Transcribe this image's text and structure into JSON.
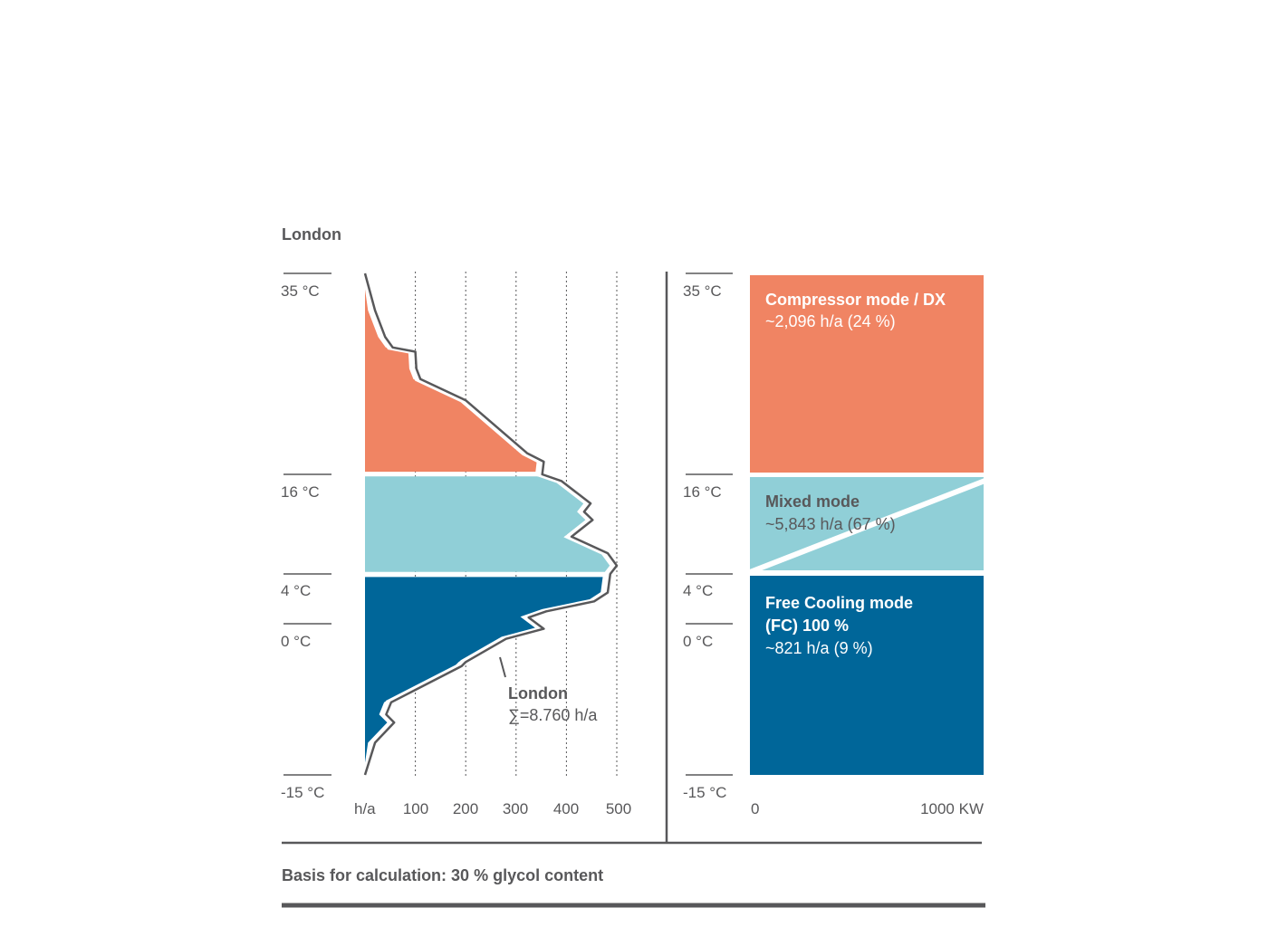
{
  "chart_data": [
    {
      "type": "area",
      "title": "London",
      "y_axis": {
        "label": "",
        "ticks": [
          "35 °C",
          "16 °C",
          "4 °C",
          "0 °C",
          "-15 °C"
        ],
        "range": [
          -15,
          35
        ]
      },
      "x_axis": {
        "unit_label": "h/a",
        "ticks": [
          100,
          200,
          300,
          400,
          500
        ],
        "range": [
          0,
          500
        ]
      },
      "grid": "vertical dotted",
      "series": [
        {
          "name": "London",
          "note": "∑=8.760 h/a",
          "points": [
            {
              "temp": 35.0,
              "hours": 0
            },
            {
              "temp": 31.5,
              "hours": 20
            },
            {
              "temp": 29.0,
              "hours": 40
            },
            {
              "temp": 28.0,
              "hours": 55
            },
            {
              "temp": 27.6,
              "hours": 100
            },
            {
              "temp": 26.0,
              "hours": 102
            },
            {
              "temp": 25.0,
              "hours": 110
            },
            {
              "temp": 23.0,
              "hours": 200
            },
            {
              "temp": 18.0,
              "hours": 322
            },
            {
              "temp": 17.2,
              "hours": 355
            },
            {
              "temp": 16.0,
              "hours": 352
            },
            {
              "temp": 15.2,
              "hours": 390
            },
            {
              "temp": 12.5,
              "hours": 448
            },
            {
              "temp": 11.5,
              "hours": 435
            },
            {
              "temp": 10.5,
              "hours": 452
            },
            {
              "temp": 8.5,
              "hours": 410
            },
            {
              "temp": 6.5,
              "hours": 482
            },
            {
              "temp": 5.0,
              "hours": 500
            },
            {
              "temp": 4.0,
              "hours": 487
            },
            {
              "temp": 2.5,
              "hours": 482
            },
            {
              "temp": 1.8,
              "hours": 455
            },
            {
              "temp": 1.0,
              "hours": 360
            },
            {
              "temp": 0.5,
              "hours": 325
            },
            {
              "temp": -0.5,
              "hours": 355
            },
            {
              "temp": -1.5,
              "hours": 280
            },
            {
              "temp": -3.8,
              "hours": 200
            },
            {
              "temp": -4.2,
              "hours": 192
            },
            {
              "temp": -7.8,
              "hours": 52
            },
            {
              "temp": -9.0,
              "hours": 42
            },
            {
              "temp": -9.8,
              "hours": 58
            },
            {
              "temp": -11.8,
              "hours": 20
            },
            {
              "temp": -15.0,
              "hours": 0
            }
          ]
        }
      ],
      "bands": [
        {
          "name": "Compressor mode / DX",
          "from": 16,
          "to": 35,
          "color": "#f08463"
        },
        {
          "name": "Mixed mode",
          "from": 4,
          "to": 16,
          "color": "#90cfd7"
        },
        {
          "name": "Free Cooling mode",
          "from": -15,
          "to": 4,
          "color": "#006699"
        }
      ]
    },
    {
      "type": "bar",
      "y_axis": {
        "ticks": [
          "35 °C",
          "16 °C",
          "4 °C",
          "0 °C",
          "-15 °C"
        ],
        "range": [
          -15,
          35
        ]
      },
      "x_axis": {
        "ticks": [
          "0",
          "1000 KW"
        ],
        "range": [
          0,
          1000
        ]
      },
      "blocks": [
        {
          "name": "Compressor mode / DX",
          "hours_text": "~2,096 h/a (24 %)",
          "from": 16,
          "to": 35,
          "color": "#f08463"
        },
        {
          "name": "Mixed mode",
          "hours_text": "~5,843 h/a (67 %)",
          "from": 4,
          "to": 16,
          "color": "#90cfd7"
        },
        {
          "name": "Free Cooling mode (FC) 100 %",
          "hours_text": "~821 h/a (9 %)",
          "from": -15,
          "to": 4,
          "color": "#006699"
        }
      ]
    }
  ],
  "labels": {
    "city_title": "London",
    "axis_unit": "h/a",
    "x_ticks": [
      "100",
      "200",
      "300",
      "400",
      "500"
    ],
    "temp_ticks": [
      "35 °C",
      "16 °C",
      "4 °C",
      "0 °C",
      "-15 °C"
    ],
    "curve_name": "London",
    "curve_sum": "∑=8.760 h/a",
    "right_x_start": "0",
    "right_x_end": "1000 KW",
    "compressor_title": "Compressor mode / DX",
    "compressor_hours": "~2,096 h/a (24 %)",
    "mixed_title": "Mixed mode",
    "mixed_hours": "~5,843 h/a (67 %)",
    "fc_title_line1": "Free Cooling mode",
    "fc_title_line2": "(FC) 100 %",
    "fc_hours": "~821 h/a (9 %)",
    "footer": "Basis for calculation: 30 % glycol content"
  },
  "colors": {
    "text": "#58585a",
    "line": "#58585a",
    "compressor": "#f08463",
    "mixed": "#90cfd7",
    "free_cooling": "#006699"
  }
}
